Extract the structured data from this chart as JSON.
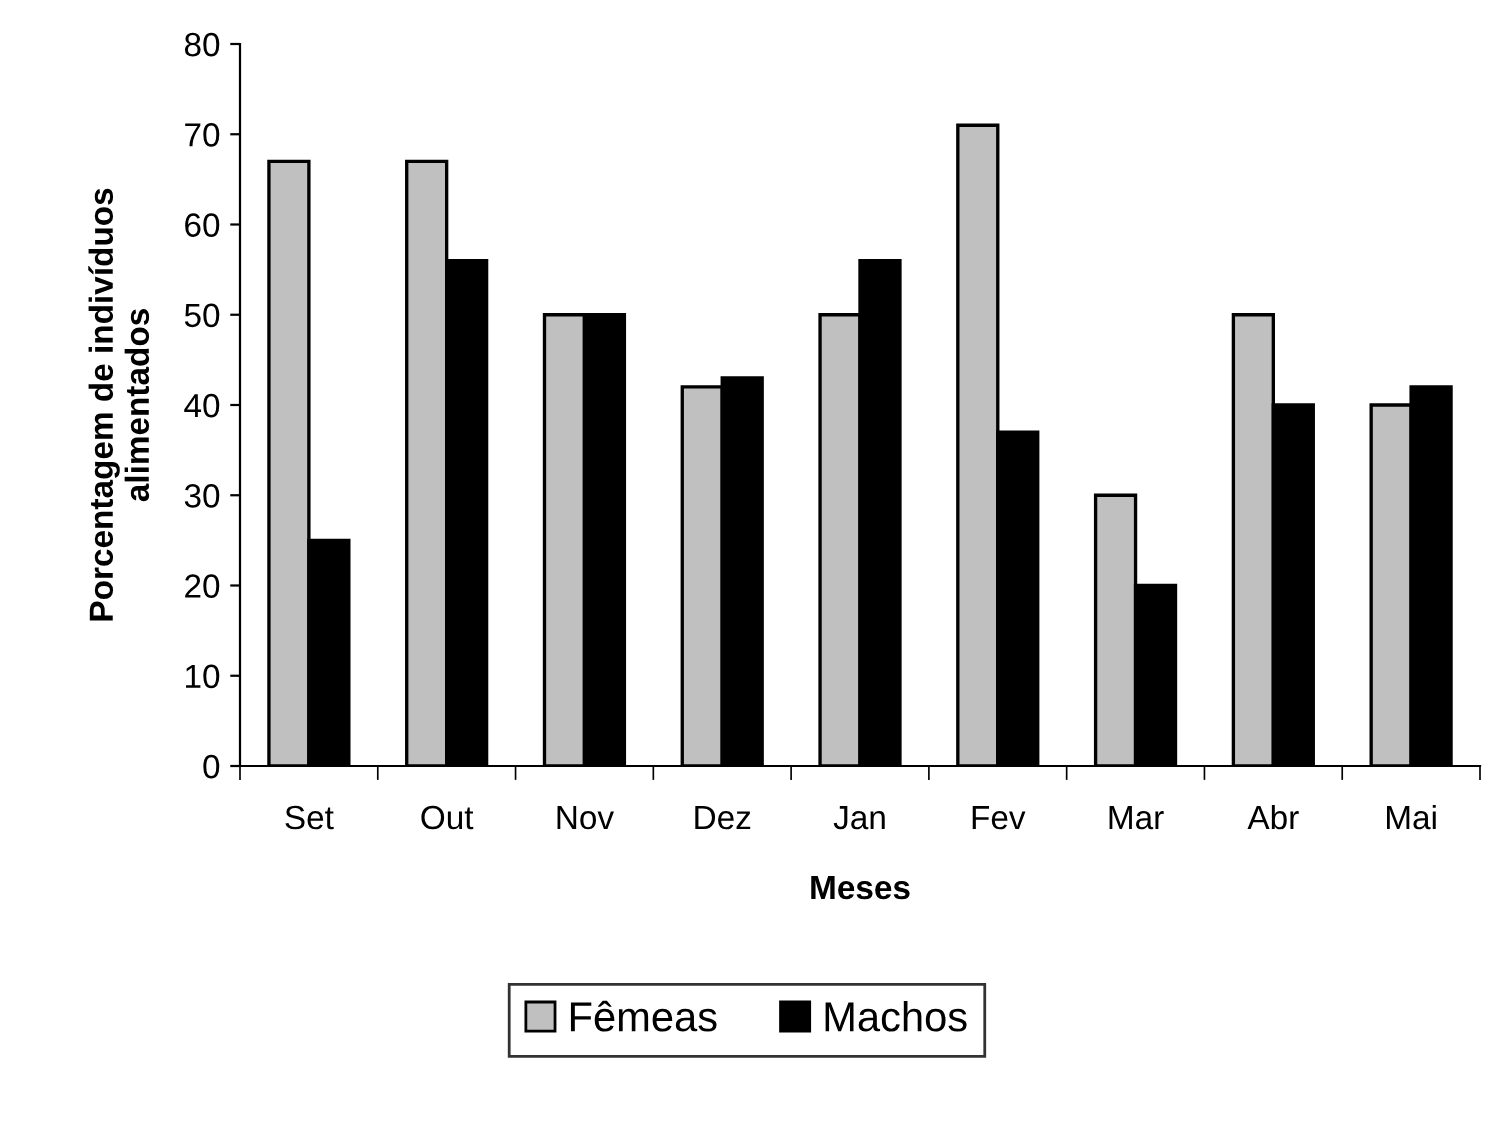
{
  "chart_data": {
    "type": "bar",
    "categories": [
      "Set",
      "Out",
      "Nov",
      "Dez",
      "Jan",
      "Fev",
      "Mar",
      "Abr",
      "Mai"
    ],
    "series": [
      {
        "name": "Fêmeas",
        "color": "#c0c0c0",
        "values": [
          67,
          67,
          50,
          42,
          50,
          71,
          30,
          50,
          40
        ]
      },
      {
        "name": "Machos",
        "color": "#000000",
        "values": [
          25,
          56,
          50,
          43,
          56,
          37,
          20,
          40,
          42
        ]
      }
    ],
    "xlabel": "Meses",
    "ylabel": "Porcentagem de indivíduos\nalimentados",
    "ylim": [
      0,
      80
    ],
    "yticks": [
      0,
      10,
      20,
      30,
      40,
      50,
      60,
      70,
      80
    ],
    "grid": false,
    "legend": "bottom"
  }
}
